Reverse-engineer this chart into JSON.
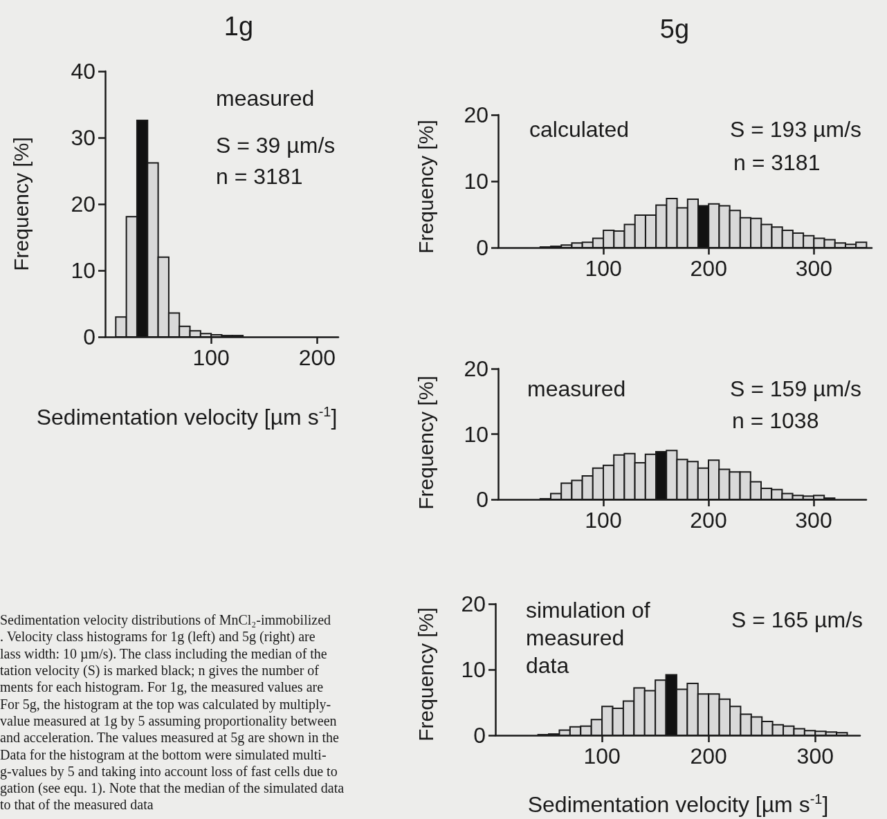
{
  "chart_data": [
    {
      "type": "histogram",
      "title": "1g",
      "xlabel": "Sedimentation velocity [µm s$^{-1}$]",
      "ylabel": "Frequency [%]",
      "annotations": [
        "measured",
        "S = 39 µm/s",
        "n = 3181",
        "Sedimentation velocity distributions of MnCl₂-immobilized\n. Velocity class histograms for 1g (left) and 5g (right) are\nlass width: 10 µm/s). The class including the median of the\ntation velocity (S) is marked black; n gives the number of\nments for each histogram. For 1g, the measured values are\nFor 5g, the histogram at the top was calculated by multiply-\nvalue measured at 1g by 5 assuming proportionality between\nand acceleration. The values measured at 5g are shown in the\nData for the histogram at the bottom were simulated multi-\ng-values by 5 and taking into account loss of fast cells due to\ngation (see equ. 1). Note that the median of the simulated data\nto that of the measured data"
      ],
      "bins": [
        10,
        20,
        30,
        40,
        50,
        60,
        70,
        80,
        90,
        100,
        110,
        120,
        130
      ],
      "values": [
        3.0,
        18.1,
        32.6,
        26.2,
        12.0,
        3.6,
        1.6,
        0.9,
        0.5,
        0.3,
        0.2,
        0.2
      ],
      "colors": [
        "#d9d9d9",
        "#d9d9d9",
        "#111111",
        "#d9d9d9",
        "#d9d9d9",
        "#d9d9d9",
        "#d9d9d9",
        "#d9d9d9",
        "#d9d9d9",
        "#d9d9d9",
        "#d9d9d9",
        "#d9d9d9"
      ],
      "xlim": [
        0,
        220
      ],
      "xticks": [
        100,
        200
      ],
      "ylim": [
        0,
        40
      ],
      "yticks": [
        0,
        10,
        20,
        30,
        40
      ]
    },
    {
      "type": "histogram",
      "title": "5g",
      "ylabel": "Frequency [%]",
      "annotations": [
        "calculated",
        "S = 193 µm/s",
        "n = 3181"
      ],
      "bins": [
        40,
        50,
        60,
        70,
        80,
        90,
        100,
        110,
        120,
        130,
        140,
        150,
        160,
        170,
        180,
        190,
        200,
        210,
        220,
        230,
        240,
        250,
        260,
        270,
        280,
        290,
        300,
        310,
        320,
        330,
        340,
        350
      ],
      "values": [
        0.1,
        0.2,
        0.4,
        0.7,
        0.8,
        1.4,
        2.6,
        2.5,
        3.5,
        4.9,
        4.9,
        6.4,
        7.4,
        6.0,
        7.3,
        6.3,
        6.6,
        6.3,
        5.6,
        4.5,
        4.4,
        3.5,
        3.1,
        2.6,
        2.2,
        1.8,
        1.4,
        1.2,
        0.7,
        0.5,
        0.8
      ],
      "colors": [
        "#d9d9d9",
        "#d9d9d9",
        "#d9d9d9",
        "#d9d9d9",
        "#d9d9d9",
        "#d9d9d9",
        "#d9d9d9",
        "#d9d9d9",
        "#d9d9d9",
        "#d9d9d9",
        "#d9d9d9",
        "#d9d9d9",
        "#d9d9d9",
        "#d9d9d9",
        "#d9d9d9",
        "#111111",
        "#d9d9d9",
        "#d9d9d9",
        "#d9d9d9",
        "#d9d9d9",
        "#d9d9d9",
        "#d9d9d9",
        "#d9d9d9",
        "#d9d9d9",
        "#d9d9d9",
        "#d9d9d9",
        "#d9d9d9",
        "#d9d9d9",
        "#d9d9d9",
        "#d9d9d9",
        "#d9d9d9"
      ],
      "xlim": [
        0,
        355
      ],
      "xticks": [
        100,
        200,
        300
      ],
      "ylim": [
        0,
        20
      ],
      "yticks": [
        0,
        10,
        20
      ]
    },
    {
      "type": "histogram",
      "ylabel": "Frequency [%]",
      "annotations": [
        "measured",
        "S = 159 µm/s",
        "n = 1038"
      ],
      "bins": [
        40,
        50,
        60,
        70,
        80,
        90,
        100,
        110,
        120,
        130,
        140,
        150,
        160,
        170,
        180,
        190,
        200,
        210,
        220,
        230,
        240,
        250,
        260,
        270,
        280,
        290,
        300,
        310,
        320
      ],
      "values": [
        0.1,
        0.9,
        2.5,
        2.9,
        3.6,
        4.8,
        5.2,
        6.8,
        7.0,
        5.6,
        6.9,
        7.3,
        7.5,
        6.1,
        5.8,
        4.8,
        6.0,
        4.6,
        4.2,
        4.2,
        2.7,
        1.7,
        1.5,
        0.9,
        0.6,
        0.5,
        0.6,
        0.2
      ],
      "colors": [
        "#d9d9d9",
        "#d9d9d9",
        "#d9d9d9",
        "#d9d9d9",
        "#d9d9d9",
        "#d9d9d9",
        "#d9d9d9",
        "#d9d9d9",
        "#d9d9d9",
        "#d9d9d9",
        "#d9d9d9",
        "#111111",
        "#d9d9d9",
        "#d9d9d9",
        "#d9d9d9",
        "#d9d9d9",
        "#d9d9d9",
        "#d9d9d9",
        "#d9d9d9",
        "#d9d9d9",
        "#d9d9d9",
        "#d9d9d9",
        "#d9d9d9",
        "#d9d9d9",
        "#d9d9d9",
        "#d9d9d9",
        "#d9d9d9",
        "#d9d9d9"
      ],
      "xlim": [
        0,
        350
      ],
      "xticks": [
        100,
        200,
        300
      ],
      "ylim": [
        0,
        20
      ],
      "yticks": [
        0,
        10,
        20
      ]
    },
    {
      "type": "histogram",
      "xlabel": "Sedimentation velocity [µm s$^{-1}$]",
      "ylabel": "Frequency [%]",
      "annotations": [
        "simulation of\nmeasured\ndata",
        "S = 165 µm/s"
      ],
      "bins": [
        40,
        50,
        60,
        70,
        80,
        90,
        100,
        110,
        120,
        130,
        140,
        150,
        160,
        170,
        180,
        190,
        200,
        210,
        220,
        230,
        240,
        250,
        260,
        270,
        280,
        290,
        300,
        310,
        320,
        330
      ],
      "values": [
        0.1,
        0.2,
        0.8,
        1.3,
        1.4,
        2.4,
        4.4,
        4.1,
        5.2,
        7.2,
        6.8,
        8.4,
        9.2,
        7.0,
        7.9,
        6.3,
        6.3,
        5.5,
        4.4,
        3.2,
        2.8,
        2.1,
        1.6,
        1.4,
        1.0,
        0.7,
        0.6,
        0.5,
        0.4
      ],
      "colors": [
        "#d9d9d9",
        "#d9d9d9",
        "#d9d9d9",
        "#d9d9d9",
        "#d9d9d9",
        "#d9d9d9",
        "#d9d9d9",
        "#d9d9d9",
        "#d9d9d9",
        "#d9d9d9",
        "#d9d9d9",
        "#d9d9d9",
        "#111111",
        "#d9d9d9",
        "#d9d9d9",
        "#d9d9d9",
        "#d9d9d9",
        "#d9d9d9",
        "#d9d9d9",
        "#d9d9d9",
        "#d9d9d9",
        "#d9d9d9",
        "#d9d9d9",
        "#d9d9d9",
        "#d9d9d9",
        "#d9d9d9",
        "#d9d9d9",
        "#d9d9d9",
        "#d9d9d9"
      ],
      "xlim": [
        0,
        342
      ],
      "xticks": [
        100,
        200,
        300
      ],
      "ylim": [
        0,
        20
      ],
      "yticks": [
        0,
        10,
        20
      ]
    }
  ]
}
